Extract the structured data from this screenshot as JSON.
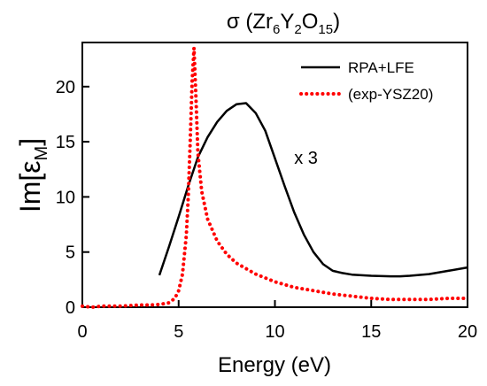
{
  "chart_data": {
    "type": "line",
    "title": {
      "prefix": "σ (Zr",
      "sub1": "6",
      "mid1": "Y",
      "sub2": "2",
      "mid2": "O",
      "sub3": "15",
      "suffix": ")"
    },
    "xlabel": "Energy (eV)",
    "ylabel": {
      "main": "Im[ε",
      "sub": "M",
      "close": "]"
    },
    "xlim": [
      0,
      20
    ],
    "ylim": [
      0,
      24
    ],
    "xticks": [
      0,
      5,
      10,
      15,
      20
    ],
    "yticks": [
      0,
      5,
      10,
      15,
      20
    ],
    "grid": false,
    "legend_position": "top-right",
    "annotation": {
      "text": "x 3",
      "x": 11.0,
      "y": 13.0
    },
    "series": [
      {
        "name": "RPA+LFE",
        "style": "solid",
        "color": "#000000",
        "x": [
          4.0,
          4.5,
          5.0,
          5.5,
          6.0,
          6.5,
          7.0,
          7.5,
          8.0,
          8.5,
          9.0,
          9.5,
          10.0,
          10.5,
          11.0,
          11.5,
          12.0,
          12.5,
          13.0,
          13.5,
          14.0,
          15.0,
          16.0,
          16.5,
          17.0,
          18.0,
          19.0,
          20.0
        ],
        "y": [
          2.9,
          5.5,
          8.2,
          11.0,
          13.6,
          15.4,
          16.8,
          17.8,
          18.4,
          18.5,
          17.6,
          16.0,
          13.5,
          11.0,
          8.6,
          6.6,
          5.0,
          3.9,
          3.3,
          3.1,
          2.95,
          2.85,
          2.8,
          2.8,
          2.85,
          3.0,
          3.3,
          3.6
        ]
      },
      {
        "name": "(exp-YSZ20)",
        "style": "dotted",
        "color": "#ff0000",
        "x": [
          0.0,
          0.5,
          1.0,
          1.5,
          2.0,
          2.5,
          3.0,
          3.5,
          4.0,
          4.5,
          4.8,
          5.0,
          5.2,
          5.4,
          5.5,
          5.6,
          5.7,
          5.8,
          5.9,
          6.0,
          6.2,
          6.5,
          7.0,
          7.5,
          8.0,
          9.0,
          10.0,
          11.0,
          12.0,
          13.0,
          14.0,
          15.0,
          16.0,
          17.0,
          18.0,
          19.0,
          20.0
        ],
        "y": [
          0.1,
          0.0,
          0.1,
          0.1,
          0.1,
          0.15,
          0.2,
          0.2,
          0.25,
          0.4,
          0.8,
          1.5,
          3.0,
          6.5,
          10.0,
          15.0,
          20.5,
          23.5,
          19.0,
          14.0,
          10.5,
          8.0,
          6.0,
          4.8,
          4.0,
          3.0,
          2.3,
          1.8,
          1.5,
          1.2,
          1.0,
          0.8,
          0.7,
          0.7,
          0.7,
          0.8,
          0.8
        ]
      }
    ]
  }
}
